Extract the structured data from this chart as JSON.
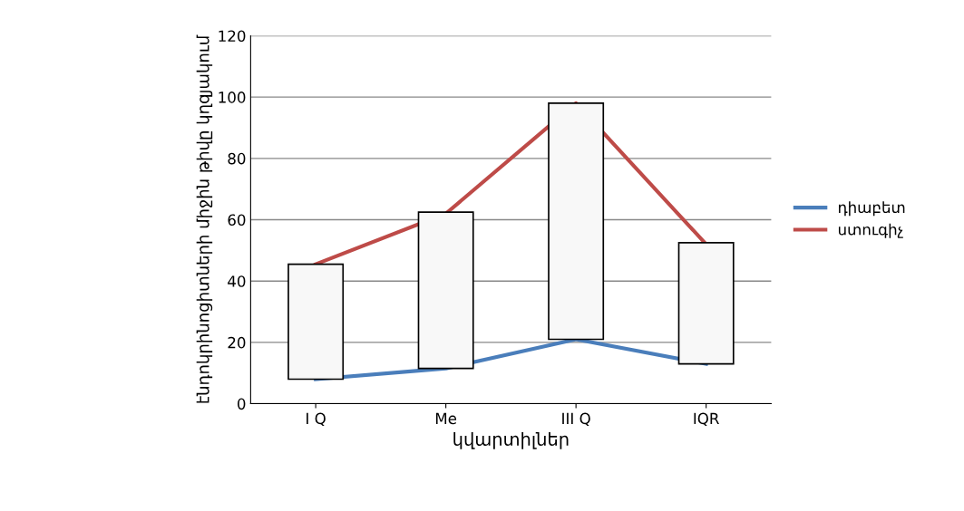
{
  "chart_data": {
    "type": "line",
    "xlabel": "կվարտիլներ",
    "ylabel": "էնդոկրինոցիտների միջին թիվը կղզյակում",
    "categories": [
      "I Q",
      "Me",
      "III Q",
      "IQR"
    ],
    "series": [
      {
        "name": "դիաբետ",
        "color": "#4a7ebb",
        "values": [
          8,
          11.5,
          21,
          13
        ]
      },
      {
        "name": "ստուգիչ",
        "color": "#be4b48",
        "values": [
          45.5,
          62,
          98,
          52
        ]
      },
      {
        "type": "bar",
        "color": "#f8f8f8",
        "values": [
          37.5,
          51,
          77,
          39.5
        ],
        "base": [
          8,
          11.5,
          21,
          13
        ]
      }
    ],
    "ylim": [
      0,
      120
    ],
    "yticks": [
      0,
      20,
      40,
      60,
      80,
      100,
      120
    ],
    "grid": "y",
    "legend": "right",
    "marker": "none",
    "line_style": "solid"
  }
}
